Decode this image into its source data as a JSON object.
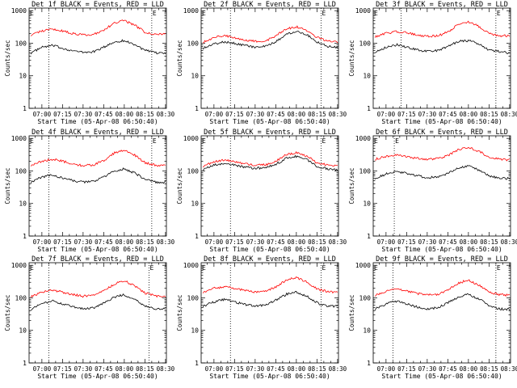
{
  "colors": {
    "events": "#000000",
    "lld": "#ff0000",
    "axis": "#000000",
    "background": "#ffffff"
  },
  "figure": {
    "xlabel": "Start Time (05-Apr-08 06:50:40)",
    "ylabel": "Counts/sec",
    "xticks": [
      "07:00",
      "07:15",
      "07:30",
      "07:45",
      "08:00",
      "08:15",
      "08:30"
    ],
    "yticks": [
      "1",
      "10",
      "100",
      "1000"
    ]
  },
  "chart_data": [
    {
      "type": "line",
      "title": "Det 1f BLACK = Events, RED = LLD",
      "marker_e": "E",
      "marker_e2": "E",
      "xlabel": "",
      "ylabel": "Counts/sec",
      "y_scale": "log",
      "ylim": [
        1,
        1200
      ],
      "x_range": [
        "06:50:40",
        "08:30:40"
      ],
      "dotted_lines_at": [
        "07:05",
        "08:20"
      ],
      "x": [
        "06:52",
        "07:00",
        "07:08",
        "07:15",
        "07:23",
        "07:30",
        "07:38",
        "07:45",
        "07:53",
        "08:00",
        "08:08",
        "08:15",
        "08:23",
        "08:30"
      ],
      "series": [
        {
          "name": "Events",
          "color": "#000000",
          "values": [
            50,
            75,
            85,
            70,
            58,
            52,
            55,
            75,
            110,
            120,
            90,
            60,
            50,
            50
          ]
        },
        {
          "name": "LLD",
          "color": "#ff0000",
          "values": [
            180,
            240,
            270,
            240,
            195,
            180,
            190,
            250,
            420,
            500,
            350,
            220,
            190,
            190
          ]
        }
      ]
    },
    {
      "type": "line",
      "title": "Det 2f BLACK = Events, RED = LLD",
      "marker_e": "E",
      "marker_e2": "E",
      "xlabel": "",
      "ylabel": "Counts/sec",
      "y_scale": "log",
      "ylim": [
        1,
        1200
      ],
      "x_range": [
        "06:50:40",
        "08:30:40"
      ],
      "dotted_lines_at": [
        "07:12",
        "08:18"
      ],
      "x": [
        "06:52",
        "07:00",
        "07:08",
        "07:15",
        "07:23",
        "07:30",
        "07:38",
        "07:45",
        "07:53",
        "08:00",
        "08:08",
        "08:15",
        "08:23",
        "08:30"
      ],
      "series": [
        {
          "name": "Events",
          "color": "#000000",
          "values": [
            70,
            95,
            110,
            100,
            85,
            75,
            80,
            110,
            190,
            240,
            180,
            110,
            80,
            75
          ]
        },
        {
          "name": "LLD",
          "color": "#ff0000",
          "values": [
            110,
            150,
            170,
            150,
            125,
            115,
            120,
            170,
            280,
            320,
            240,
            150,
            115,
            110
          ]
        }
      ]
    },
    {
      "type": "line",
      "title": "Det 3f BLACK = Events, RED = LLD",
      "marker_e": "E",
      "marker_e2": "E",
      "xlabel": "",
      "ylabel": "Counts/sec",
      "y_scale": "log",
      "ylim": [
        1,
        1200
      ],
      "x_range": [
        "06:50:40",
        "08:30:40"
      ],
      "dotted_lines_at": [
        "07:11",
        "08:20"
      ],
      "x": [
        "06:52",
        "07:00",
        "07:08",
        "07:15",
        "07:23",
        "07:30",
        "07:38",
        "07:45",
        "07:53",
        "08:00",
        "08:08",
        "08:15",
        "08:23",
        "08:30"
      ],
      "series": [
        {
          "name": "Events",
          "color": "#000000",
          "values": [
            55,
            75,
            90,
            75,
            62,
            56,
            60,
            80,
            115,
            120,
            95,
            62,
            55,
            50
          ]
        },
        {
          "name": "LLD",
          "color": "#ff0000",
          "values": [
            160,
            200,
            230,
            210,
            175,
            160,
            170,
            220,
            380,
            460,
            320,
            200,
            170,
            170
          ]
        }
      ]
    },
    {
      "type": "line",
      "title": "Det 4f BLACK = Events, RED = LLD",
      "marker_e": "E",
      "marker_e2": "E",
      "xlabel": "",
      "ylabel": "Counts/sec",
      "y_scale": "log",
      "ylim": [
        1,
        1200
      ],
      "x_range": [
        "06:50:40",
        "08:30:40"
      ],
      "dotted_lines_at": [
        "07:05",
        "08:20"
      ],
      "x": [
        "06:52",
        "07:00",
        "07:08",
        "07:15",
        "07:23",
        "07:30",
        "07:38",
        "07:45",
        "07:53",
        "08:00",
        "08:08",
        "08:15",
        "08:23",
        "08:30"
      ],
      "series": [
        {
          "name": "Events",
          "color": "#000000",
          "values": [
            45,
            65,
            75,
            60,
            50,
            45,
            48,
            65,
            100,
            115,
            85,
            55,
            45,
            45
          ]
        },
        {
          "name": "LLD",
          "color": "#ff0000",
          "values": [
            150,
            200,
            230,
            200,
            160,
            145,
            155,
            210,
            360,
            440,
            300,
            180,
            150,
            150
          ]
        }
      ]
    },
    {
      "type": "line",
      "title": "Det 5f BLACK = Events, RED = LLD",
      "marker_e": "E",
      "marker_e2": "E",
      "xlabel": "",
      "ylabel": "Counts/sec",
      "y_scale": "log",
      "ylim": [
        1,
        1200
      ],
      "x_range": [
        "06:50:40",
        "08:30:40"
      ],
      "dotted_lines_at": [
        "07:12",
        "08:18"
      ],
      "x": [
        "06:52",
        "07:00",
        "07:08",
        "07:15",
        "07:23",
        "07:30",
        "07:38",
        "07:45",
        "07:53",
        "08:00",
        "08:08",
        "08:15",
        "08:23",
        "08:30"
      ],
      "series": [
        {
          "name": "Events",
          "color": "#000000",
          "values": [
            110,
            150,
            170,
            150,
            130,
            120,
            125,
            160,
            250,
            280,
            220,
            140,
            115,
            110
          ]
        },
        {
          "name": "LLD",
          "color": "#ff0000",
          "values": [
            140,
            190,
            220,
            190,
            165,
            150,
            155,
            200,
            320,
            360,
            280,
            175,
            150,
            145
          ]
        }
      ]
    },
    {
      "type": "line",
      "title": "Det 6f BLACK = Events, RED = LLD",
      "marker_e": "E",
      "marker_e2": "E",
      "xlabel": "",
      "ylabel": "Counts/sec",
      "y_scale": "log",
      "ylim": [
        1,
        1200
      ],
      "x_range": [
        "06:50:40",
        "08:30:40"
      ],
      "dotted_lines_at": [
        "07:06"
      ],
      "x": [
        "06:52",
        "07:00",
        "07:08",
        "07:15",
        "07:23",
        "07:30",
        "07:38",
        "07:45",
        "07:53",
        "08:00",
        "08:08",
        "08:15",
        "08:23",
        "08:30"
      ],
      "series": [
        {
          "name": "Events",
          "color": "#000000",
          "values": [
            60,
            80,
            95,
            85,
            70,
            62,
            66,
            85,
            125,
            140,
            105,
            70,
            60,
            58
          ]
        },
        {
          "name": "LLD",
          "color": "#ff0000",
          "values": [
            230,
            280,
            310,
            280,
            240,
            225,
            235,
            300,
            460,
            520,
            400,
            260,
            225,
            220
          ]
        }
      ]
    },
    {
      "type": "line",
      "title": "Det 7f BLACK = Events, RED = LLD",
      "marker_e": "E",
      "marker_e2": "E",
      "xlabel": "",
      "ylabel": "Counts/sec",
      "y_scale": "log",
      "ylim": [
        1,
        1200
      ],
      "x_range": [
        "06:50:40",
        "08:30:40"
      ],
      "dotted_lines_at": [
        "07:05",
        "08:18"
      ],
      "x": [
        "06:52",
        "07:00",
        "07:08",
        "07:15",
        "07:23",
        "07:30",
        "07:38",
        "07:45",
        "07:53",
        "08:00",
        "08:08",
        "08:15",
        "08:23",
        "08:30"
      ],
      "series": [
        {
          "name": "Events",
          "color": "#000000",
          "values": [
            45,
            65,
            80,
            65,
            52,
            46,
            50,
            70,
            105,
            125,
            90,
            55,
            45,
            45
          ]
        },
        {
          "name": "LLD",
          "color": "#ff0000",
          "values": [
            110,
            150,
            175,
            150,
            125,
            112,
            118,
            160,
            270,
            330,
            230,
            140,
            115,
            110
          ]
        }
      ]
    },
    {
      "type": "line",
      "title": "Det 8f BLACK = Events, RED = LLD",
      "marker_e": "E",
      "marker_e2": "E",
      "xlabel": "",
      "ylabel": "Counts/sec",
      "y_scale": "log",
      "ylim": [
        1,
        1200
      ],
      "x_range": [
        "06:50:40",
        "08:30:40"
      ],
      "dotted_lines_at": [
        "07:12",
        "08:18"
      ],
      "x": [
        "06:52",
        "07:00",
        "07:08",
        "07:15",
        "07:23",
        "07:30",
        "07:38",
        "07:45",
        "07:53",
        "08:00",
        "08:08",
        "08:15",
        "08:23",
        "08:30"
      ],
      "series": [
        {
          "name": "Events",
          "color": "#000000",
          "values": [
            55,
            75,
            90,
            75,
            62,
            56,
            60,
            85,
            130,
            150,
            110,
            70,
            55,
            55
          ]
        },
        {
          "name": "LLD",
          "color": "#ff0000",
          "values": [
            150,
            195,
            225,
            195,
            165,
            150,
            160,
            215,
            360,
            420,
            300,
            185,
            155,
            150
          ]
        }
      ]
    },
    {
      "type": "line",
      "title": "Det 9f BLACK = Events, RED = LLD",
      "marker_e": "E",
      "marker_e2": "E",
      "xlabel": "",
      "ylabel": "Counts/sec",
      "y_scale": "log",
      "ylim": [
        1,
        1200
      ],
      "x_range": [
        "06:50:40",
        "08:30:40"
      ],
      "dotted_lines_at": [
        "07:05",
        "08:20"
      ],
      "x": [
        "06:52",
        "07:00",
        "07:08",
        "07:15",
        "07:23",
        "07:30",
        "07:38",
        "07:45",
        "07:53",
        "08:00",
        "08:08",
        "08:15",
        "08:23",
        "08:30"
      ],
      "series": [
        {
          "name": "Events",
          "color": "#000000",
          "values": [
            45,
            65,
            80,
            65,
            52,
            46,
            50,
            70,
            110,
            130,
            92,
            56,
            45,
            45
          ]
        },
        {
          "name": "LLD",
          "color": "#ff0000",
          "values": [
            120,
            160,
            185,
            160,
            135,
            122,
            128,
            170,
            290,
            350,
            245,
            150,
            125,
            120
          ]
        }
      ]
    }
  ]
}
